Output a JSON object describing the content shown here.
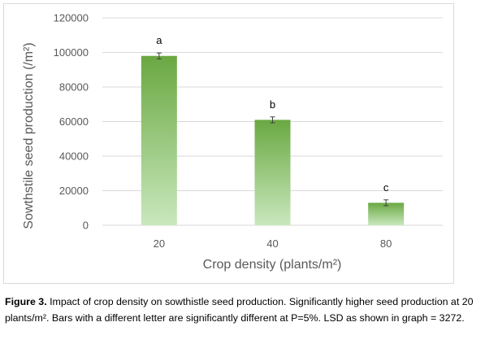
{
  "chart_data": {
    "type": "bar",
    "categories": [
      "20",
      "40",
      "80"
    ],
    "values": [
      98000,
      61000,
      13000
    ],
    "error": [
      1700,
      1700,
      1700
    ],
    "significance_letters": [
      "a",
      "b",
      "c"
    ],
    "title": "",
    "xlabel": "Crop density (plants/m²)",
    "ylabel": "Sowthstile seed production (/m²)",
    "ylim": [
      0,
      120000
    ],
    "yticks": [
      "0",
      "20000",
      "40000",
      "60000",
      "80000",
      "100000",
      "120000"
    ],
    "grid": true,
    "legend": "none",
    "colors": {
      "bar_top": "#6aa842",
      "bar_bottom": "#c9e8bd",
      "grid": "#d9d9d9",
      "error": "#404040"
    }
  },
  "caption": {
    "label": "Figure 3.",
    "text": " Impact of crop density on sowthistle seed production. Significantly higher seed production at 20 plants/m². Bars with a different letter are significantly different at P=5%. LSD as shown in graph = 3272."
  }
}
